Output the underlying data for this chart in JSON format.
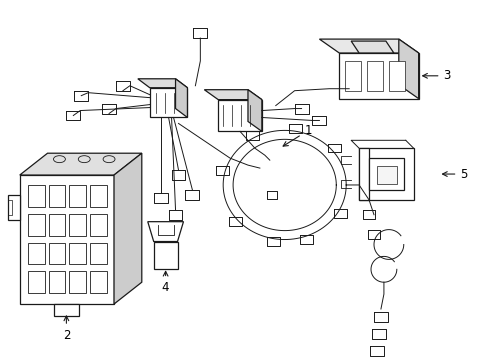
{
  "background_color": "#ffffff",
  "line_color": "#1a1a1a",
  "lw": 0.9,
  "tlw": 0.7,
  "label_fontsize": 8.5
}
